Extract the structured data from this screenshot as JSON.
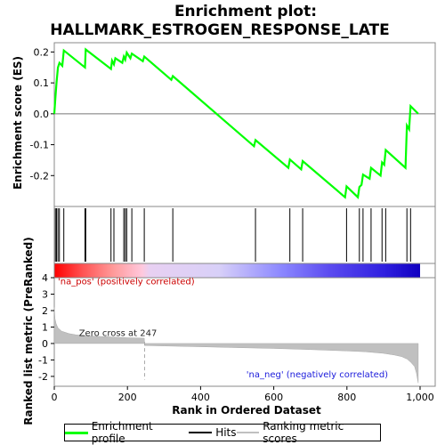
{
  "chart_data": {
    "type": "line",
    "title": "Enrichment plot:\nHALLMARK_ESTROGEN_RESPONSE_LATE",
    "xlabel": "Rank in Ordered Dataset",
    "xlim": [
      0,
      1000
    ],
    "x_ticks": [
      0,
      200,
      400,
      600,
      800,
      "1,000"
    ],
    "es_panel": {
      "ylabel": "Enrichment score (ES)",
      "ylim": [
        -0.3,
        0.23
      ],
      "y_ticks": [
        0.2,
        0.1,
        0.0,
        -0.1,
        -0.2
      ],
      "series": [
        {
          "name": "Enrichment profile",
          "color": "#00ff00",
          "x": [
            0,
            3,
            6,
            10,
            14,
            22,
            26,
            84,
            86,
            155,
            158,
            163,
            167,
            186,
            190,
            194,
            198,
            208,
            212,
            242,
            246,
            320,
            324,
            546,
            550,
            640,
            644,
            675,
            679,
            795,
            799,
            830,
            834,
            840,
            844,
            862,
            866,
            892,
            896,
            902,
            906,
            960,
            964,
            970,
            974,
            995
          ],
          "values": [
            0.0,
            0.05,
            0.1,
            0.15,
            0.165,
            0.155,
            0.205,
            0.15,
            0.208,
            0.145,
            0.172,
            0.16,
            0.18,
            0.165,
            0.185,
            0.175,
            0.198,
            0.18,
            0.195,
            0.17,
            0.185,
            0.11,
            0.122,
            -0.105,
            -0.085,
            -0.175,
            -0.148,
            -0.18,
            -0.153,
            -0.27,
            -0.235,
            -0.27,
            -0.237,
            -0.23,
            -0.197,
            -0.21,
            -0.175,
            -0.2,
            -0.157,
            -0.165,
            -0.117,
            -0.175,
            -0.038,
            -0.05,
            0.025,
            0.0
          ]
        }
      ]
    },
    "hits": {
      "name": "Hits",
      "color": "#000000",
      "x": [
        3,
        6,
        10,
        14,
        26,
        84,
        86,
        155,
        163,
        190,
        194,
        198,
        212,
        246,
        324,
        550,
        644,
        679,
        799,
        834,
        844,
        866,
        896,
        906,
        964,
        974
      ]
    },
    "metric_panel": {
      "name": "Ranking metric scores",
      "ylabel": "Ranked list metric (PreRanked)",
      "ylim": [
        -2.6,
        4.0
      ],
      "y_ticks": [
        4,
        3,
        2,
        1,
        0,
        -1,
        -2
      ],
      "zero_cross": 247,
      "zero_cross_label": "Zero cross at 247",
      "pos_label": "'na_pos' (positively correlated)",
      "neg_label": "'na_neg' (negatively correlated)",
      "color": "#c0c0c0",
      "profile_x": [
        0,
        2,
        5,
        10,
        20,
        40,
        60,
        100,
        150,
        200,
        246,
        247,
        300,
        400,
        500,
        600,
        700,
        800,
        850,
        900,
        930,
        950,
        965,
        975,
        985,
        990,
        995
      ],
      "profile_y": [
        2.2,
        1.5,
        1.2,
        0.95,
        0.75,
        0.6,
        0.52,
        0.45,
        0.4,
        0.35,
        0.32,
        -0.12,
        -0.15,
        -0.2,
        -0.25,
        -0.3,
        -0.37,
        -0.45,
        -0.5,
        -0.6,
        -0.7,
        -0.8,
        -0.95,
        -1.15,
        -1.4,
        -1.8,
        -2.4
      ]
    },
    "grid": false,
    "legend_position": "bottom"
  },
  "legend": {
    "items": [
      {
        "label": "Enrichment profile",
        "color": "#00ff00"
      },
      {
        "label": "Hits",
        "color": "#000000"
      },
      {
        "label": "Ranking metric scores",
        "color": "#c0c0c0"
      }
    ]
  }
}
